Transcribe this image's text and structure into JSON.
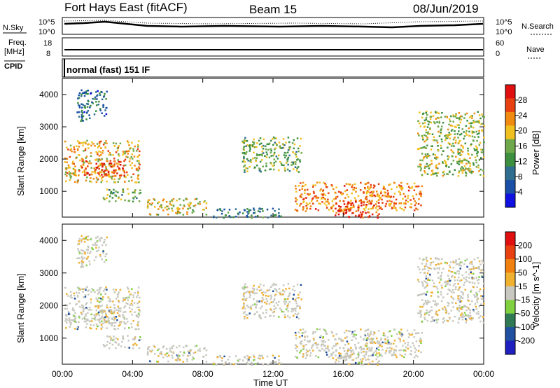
{
  "header": {
    "station": "Fort Hays East (fitACF)",
    "beam": "Beam 15",
    "date": "08/Jun/2019"
  },
  "strips": {
    "nsky_label": "N.Sky",
    "nsearch_label": "N.Search",
    "noise_ticks_left": [
      "10^5",
      "10^0"
    ],
    "noise_ticks_right": [
      "10^5",
      "10^0"
    ],
    "freq_label": "Freq.",
    "freq_unit": "[MHz]",
    "freq_ticks": [
      "18",
      "8"
    ],
    "nave_label": "Nave",
    "nave_ticks": [
      "60",
      "0"
    ],
    "cpid_label": "CPID",
    "cpid_text": "normal (fast) 151 IF"
  },
  "colors": {
    "power_scale": [
      "#1010e0",
      "#1a4fa8",
      "#2f6e8f",
      "#3b8f3f",
      "#6fa84a",
      "#f0c020",
      "#f08a10",
      "#e84010",
      "#e01010"
    ],
    "velocity_scale": [
      "#2020c0",
      "#2050a0",
      "#2f7a55",
      "#80d040",
      "#c8c8c0",
      "#f0b030",
      "#f08010",
      "#e84010",
      "#e01010"
    ]
  },
  "chart_data": [
    {
      "type": "heatmap",
      "name_printed": "",
      "colorbar_label": "Power [dB]",
      "colorbar_ticks": [
        "28",
        "24",
        "20",
        "16",
        "12",
        "8",
        "4"
      ],
      "ylabel": "Slant Range [km]",
      "y_ticks": [
        "4000",
        "3000",
        "2000",
        "1000"
      ],
      "ylim": [
        200,
        4500
      ],
      "xlim_hours": [
        0,
        24
      ],
      "regions_hours_km_db": [
        {
          "t": [
            0.1,
            4.4
          ],
          "r": [
            1300,
            2600
          ],
          "db": 20
        },
        {
          "t": [
            1.0,
            3.5
          ],
          "r": [
            1500,
            2000
          ],
          "db": 26
        },
        {
          "t": [
            2.3,
            4.5
          ],
          "r": [
            700,
            1100
          ],
          "db": 14
        },
        {
          "t": [
            4.8,
            8.2
          ],
          "r": [
            300,
            800
          ],
          "db": 18
        },
        {
          "t": [
            8.5,
            12.5
          ],
          "r": [
            200,
            500
          ],
          "db": 10
        },
        {
          "t": [
            10.2,
            13.6
          ],
          "r": [
            1600,
            2700
          ],
          "db": 14
        },
        {
          "t": [
            13.2,
            20.5
          ],
          "r": [
            400,
            1300
          ],
          "db": 22
        },
        {
          "t": [
            15.5,
            18.0
          ],
          "r": [
            200,
            700
          ],
          "db": 27
        },
        {
          "t": [
            20.2,
            24.0
          ],
          "r": [
            1500,
            3500
          ],
          "db": 16
        },
        {
          "t": [
            0.8,
            2.5
          ],
          "r": [
            3200,
            4200
          ],
          "db": 8
        }
      ]
    },
    {
      "type": "heatmap",
      "colorbar_label": "Velocity [m s^-1]",
      "colorbar_ticks": [
        "200",
        "100",
        "50",
        "15",
        "-15",
        "-50",
        "-100",
        "-200"
      ],
      "ylabel": "Slant Range [km]",
      "y_ticks": [
        "4000",
        "3000",
        "2000",
        "1000"
      ],
      "ylim": [
        200,
        4500
      ],
      "xlabel": "Time UT",
      "x_ticks": [
        "00:00",
        "04:00",
        "08:00",
        "12:00",
        "16:00",
        "20:00",
        "00:00"
      ],
      "xlim_hours": [
        0,
        24
      ]
    }
  ]
}
